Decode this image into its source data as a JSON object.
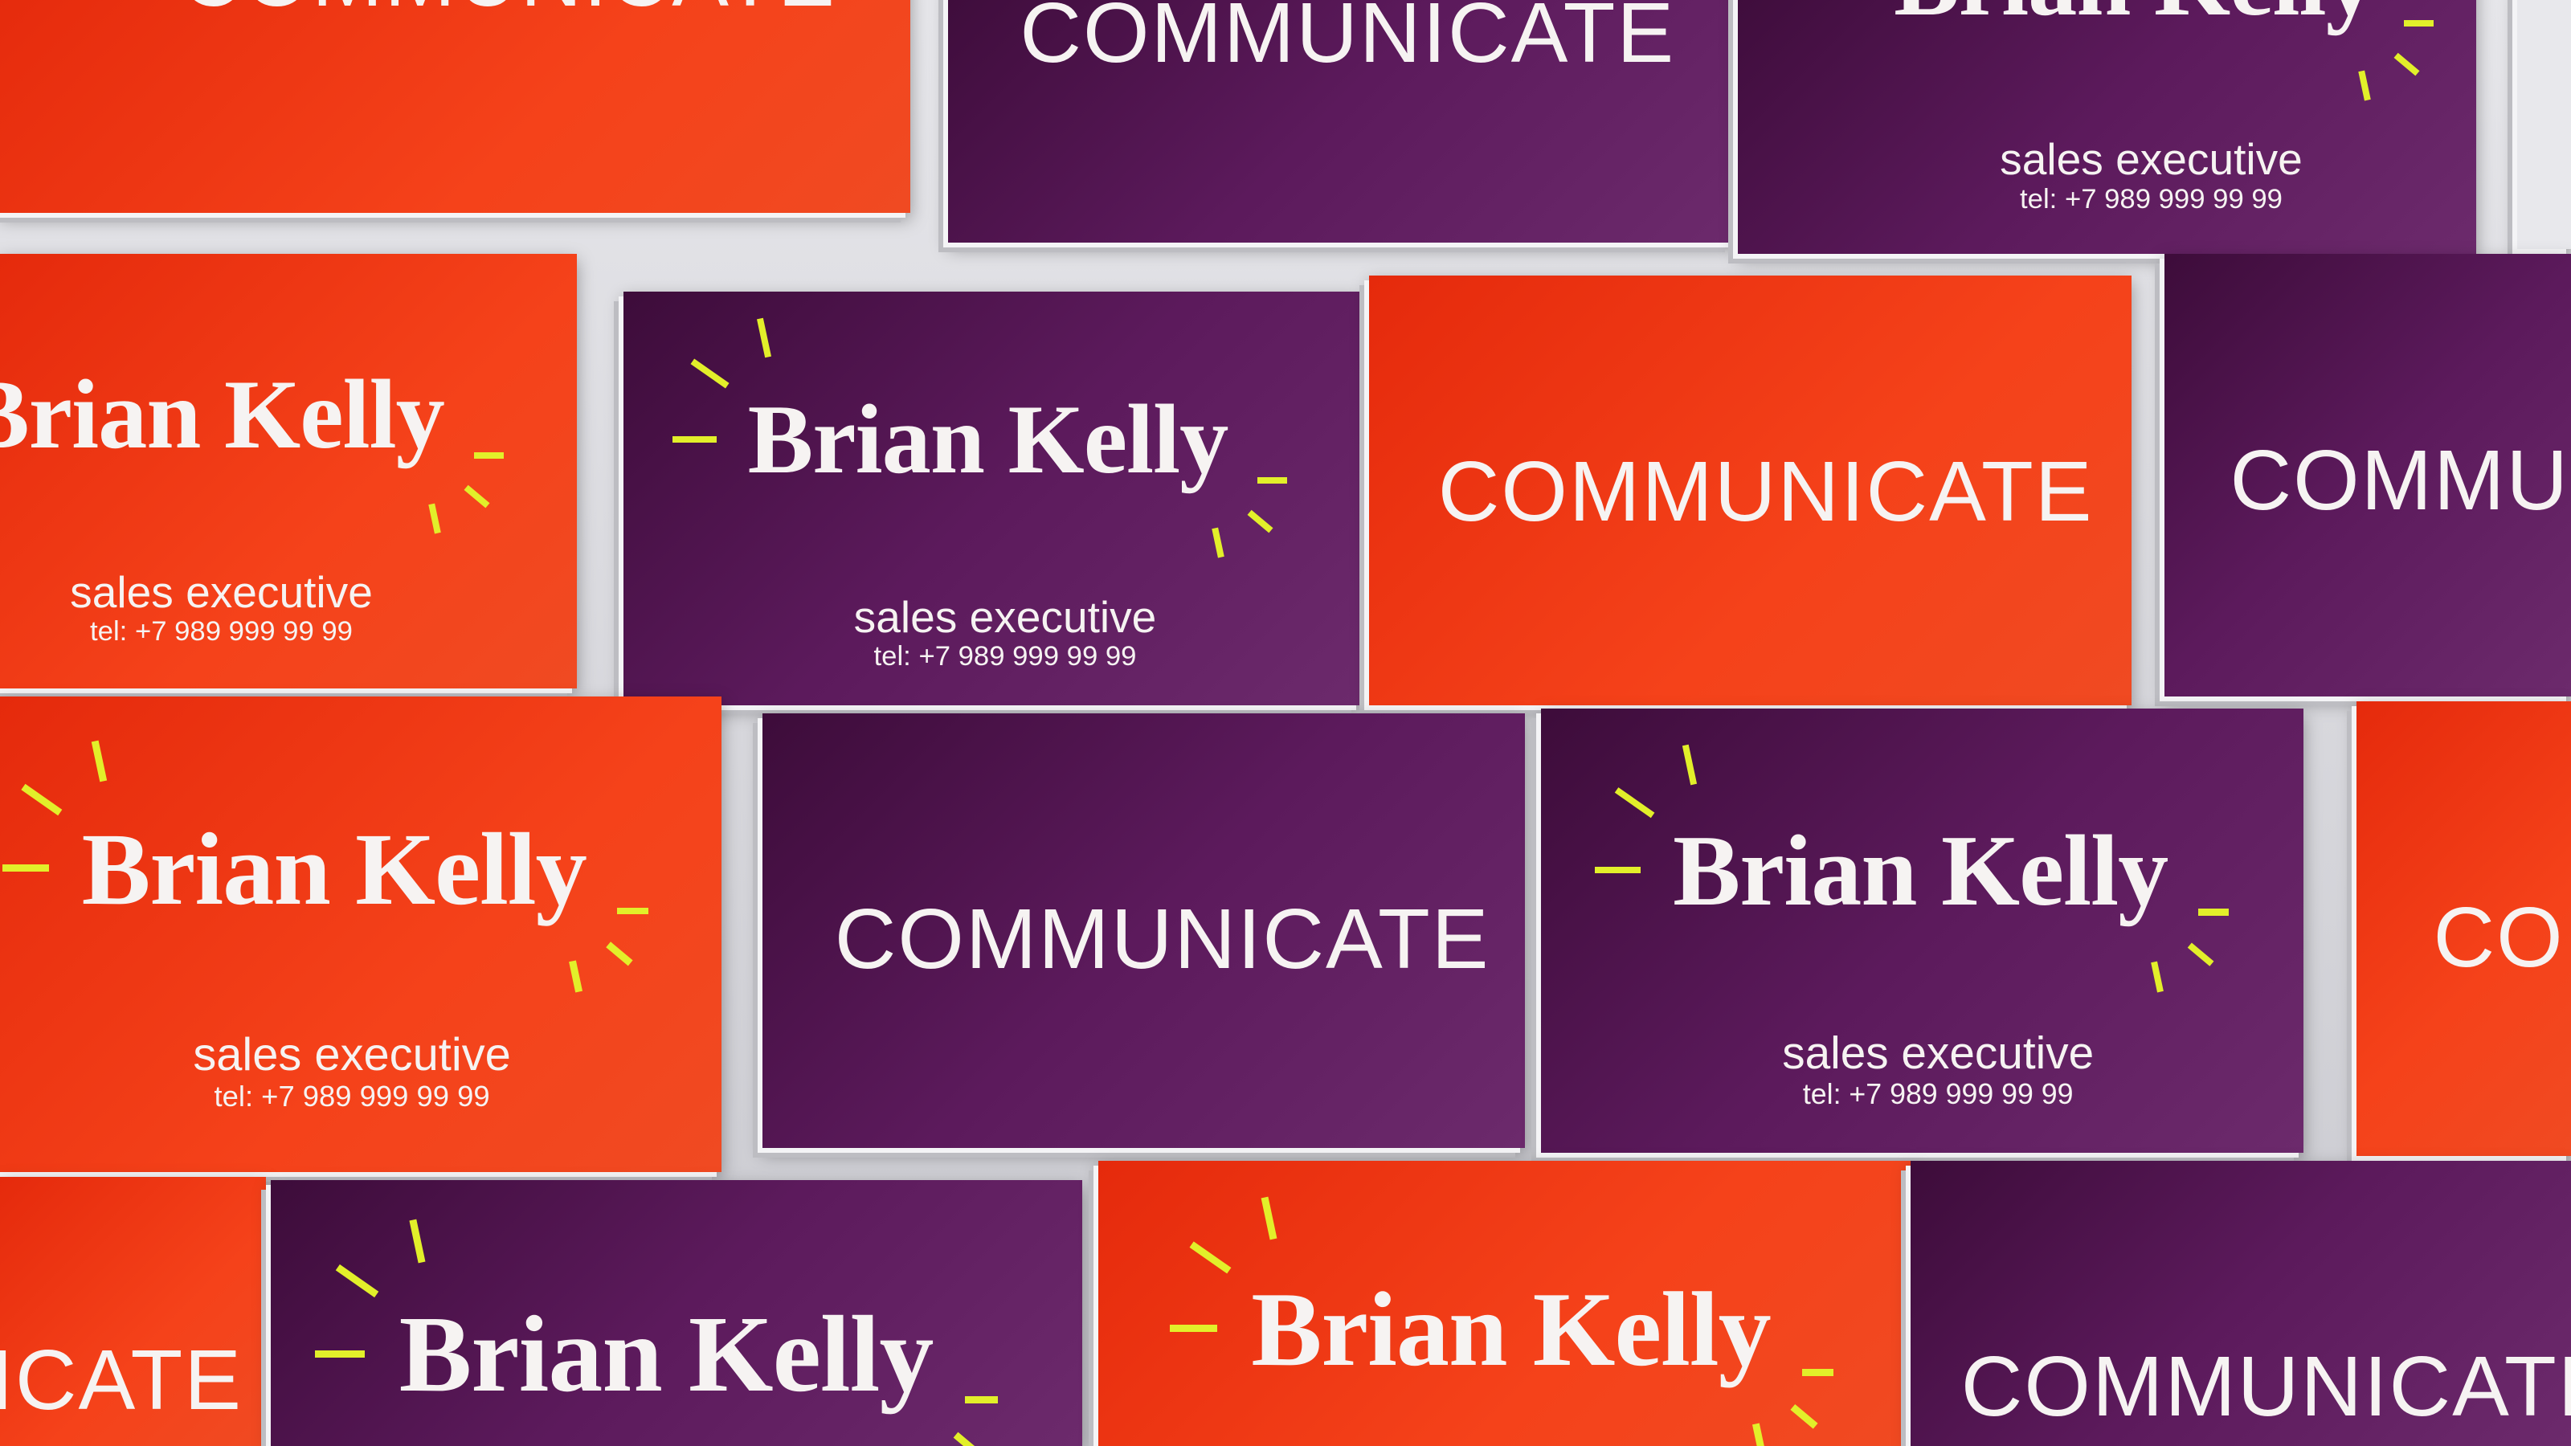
{
  "card": {
    "name": "Brian Kelly",
    "title": "sales executive",
    "tel": "tel: +7 989 999 99 99",
    "word": "COMMUNICATE"
  },
  "colors": {
    "orange": "#f23a12",
    "purple": "#5c1a5c",
    "accent_yellow": "#e2ef2a",
    "text": "#f6f3f2"
  }
}
